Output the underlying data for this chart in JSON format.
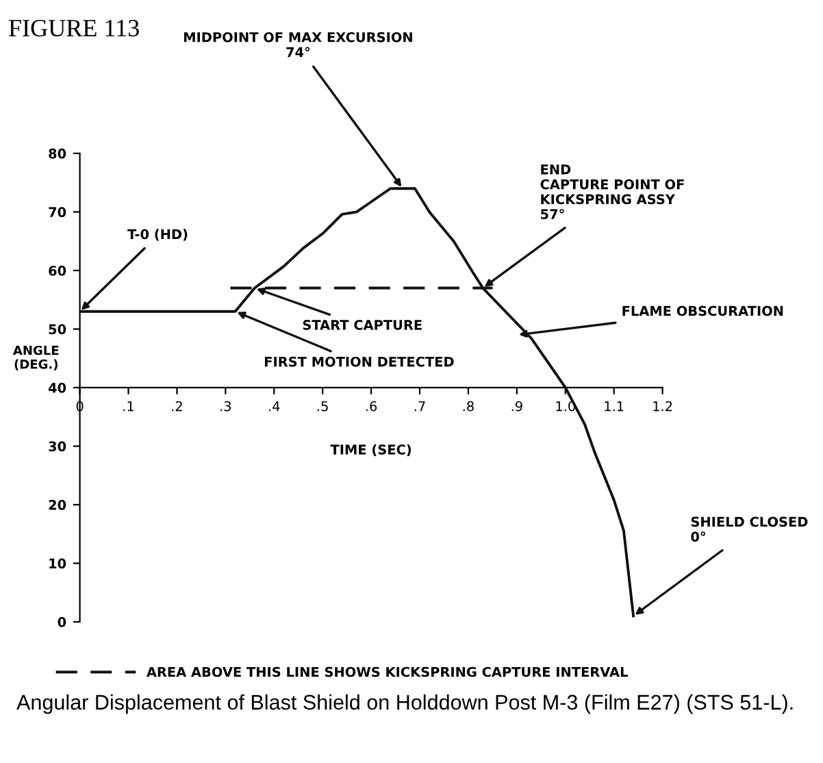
{
  "chart_data": {
    "type": "line",
    "title": "FIGURE 113",
    "xlabel": "TIME (SEC)",
    "ylabel": "ANGLE\n(DEG.)",
    "xlim": [
      0,
      1.2
    ],
    "ylim": [
      0,
      80
    ],
    "xticks": [
      0,
      {
        "value": 0.1,
        "label": ".1"
      },
      {
        "value": 0.2,
        "label": ".2"
      },
      {
        "value": 0.3,
        "label": ".3"
      },
      {
        "value": 0.4,
        "label": ".4"
      },
      {
        "value": 0.5,
        "label": ".5"
      },
      {
        "value": 0.6,
        "label": ".6"
      },
      {
        "value": 0.7,
        "label": ".7"
      },
      {
        "value": 0.8,
        "label": ".8"
      },
      {
        "value": 0.9,
        "label": ".9"
      },
      {
        "value": 1.0,
        "label": "1.0"
      },
      {
        "value": 1.1,
        "label": "1.1"
      },
      {
        "value": 1.2,
        "label": "1.2"
      }
    ],
    "yticks": [
      0,
      10,
      20,
      30,
      40,
      50,
      60,
      70,
      80
    ],
    "grid": false,
    "legend": "bottom",
    "marker": "none",
    "series": [
      {
        "color": "#111111",
        "line_style": "solid",
        "x": [
          0,
          0.32,
          0.36,
          0.42,
          0.46,
          0.5,
          0.54,
          0.57,
          0.61,
          0.64,
          0.69,
          0.72,
          0.77,
          0.81,
          0.83,
          0.93,
          1.0,
          1.04,
          1.06,
          1.1,
          1.12,
          1.14
        ],
        "values": [
          53,
          53,
          57,
          60.7,
          63.8,
          66.3,
          69.6,
          70,
          72.3,
          74,
          74,
          70,
          65,
          59.6,
          57,
          48.4,
          40,
          33.7,
          29,
          20.8,
          15.6,
          1
        ]
      },
      {
        "name": "AREA ABOVE THIS LINE SHOWS KICKSPRING CAPTURE INTERVAL",
        "color": "#111111",
        "line_style": "dashed",
        "x": [
          0.31,
          0.85
        ],
        "values": [
          57,
          57
        ]
      }
    ],
    "annotations": [
      {
        "text": "T-0 (HD)",
        "x": 0,
        "y": 53
      },
      {
        "text": "MIDPOINT OF MAX EXCURSION\n74°",
        "x": 0.665,
        "y": 74
      },
      {
        "text": "START CAPTURE",
        "x": 0.36,
        "y": 57
      },
      {
        "text": "FIRST MOTION DETECTED",
        "x": 0.32,
        "y": 53
      },
      {
        "text": "END\nCAPTURE POINT OF\nKICKSPRING ASSY\n57°",
        "x": 0.83,
        "y": 57
      },
      {
        "text": "FLAME OBSCURATION",
        "x": 0.9,
        "y": 49
      },
      {
        "text": "SHIELD CLOSED\n0°",
        "x": 1.14,
        "y": 1
      },
      "Angular Displacement of Blast Shield on Holddown Post M-3 (Film E27) (STS 51-L)."
    ]
  }
}
